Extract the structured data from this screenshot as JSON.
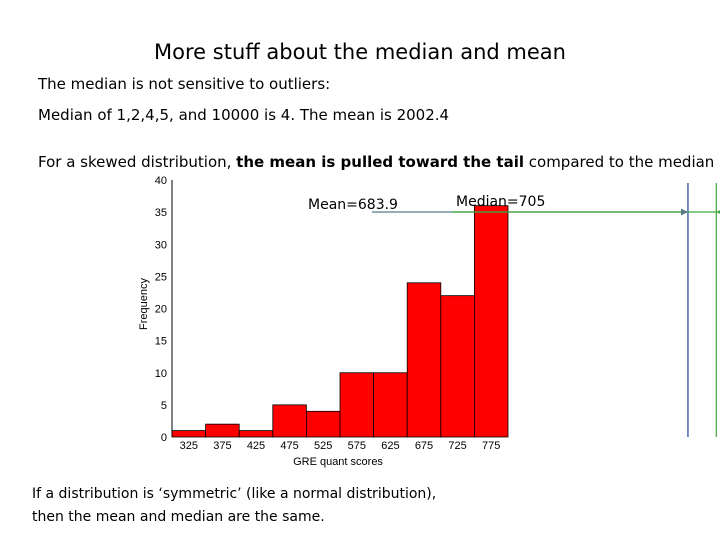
{
  "slide": {
    "title": "More stuff about the median and mean",
    "line1": "The median is not sensitive to outliers:",
    "line2": "Median of 1,2,4,5, and 10000 is 4.  The mean is 2002.4",
    "line3_pre": "For a skewed distribution, ",
    "line3_bold": "the mean is pulled toward the tail",
    "line3_post": " compared to the median",
    "footer_line1": "If a distribution is ‘symmetric’ (like a normal distribution),",
    "footer_line2": "then the mean and median are the same."
  },
  "chart_data": {
    "type": "bar",
    "xlabel": "GRE quant scores",
    "ylabel": "Frequency",
    "ylim": [
      0,
      40
    ],
    "y_ticks": [
      0,
      5,
      10,
      15,
      20,
      25,
      30,
      35,
      40
    ],
    "x_ticks": [
      "325",
      "375",
      "425",
      "475",
      "525",
      "575",
      "625",
      "675",
      "725",
      "775"
    ],
    "bin_start": 300,
    "bin_width": 25,
    "values": [
      1,
      2,
      1,
      5,
      4,
      10,
      10,
      24,
      22,
      36
    ],
    "bar_color": "#ff0000",
    "grid": false,
    "mean": {
      "label": "Mean=683.9",
      "value": 683.9,
      "color": "#1f3f9f"
    },
    "median": {
      "label": "Median=705",
      "value": 705,
      "color": "#3fa63f"
    }
  }
}
